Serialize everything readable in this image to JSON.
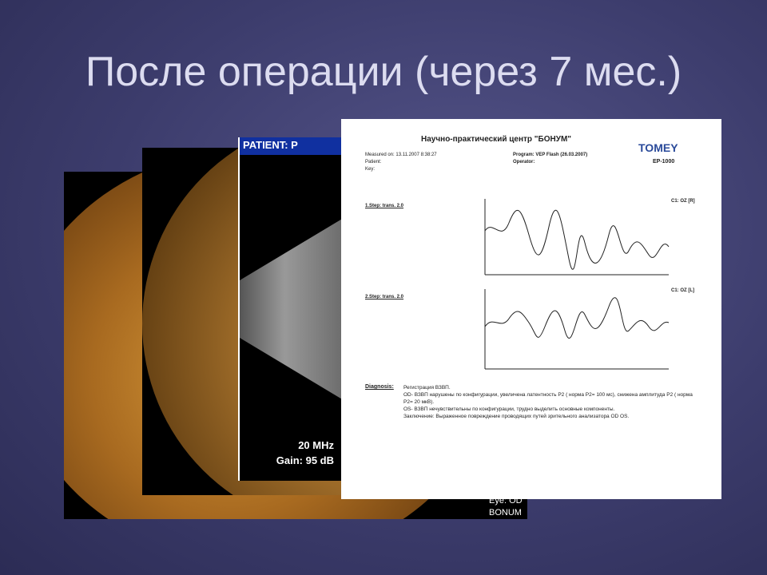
{
  "header": {
    "title": "После операции (через 7 мес.)"
  },
  "ultrasound": {
    "patient": "PATIENT: P",
    "frequency": "20 MHz",
    "gain": "Gain: 95 dB"
  },
  "fundus": {
    "eye": "Eye: OD",
    "clinic": "BONUM"
  },
  "report": {
    "title": "Научно-практический центр \"БОНУМ\"",
    "brand": "TOMEY",
    "device": "EP-1000",
    "measured": "Measured on: 13.11.2007 8:38:27",
    "patient": "Patient:",
    "key": "Key:",
    "program": "Program: VEP Flash (26.03.2007)",
    "operator": "Operator:",
    "step1": "1.Step: trans. 2.0",
    "channel1": "C1: OZ [R]",
    "step2": "2.Step: trans. 2.0",
    "channel2": "C1: OZ [L]",
    "diagnosis_label": "Diagnosis:",
    "diagnosis": [
      "Регистрация ВЗВП.",
      "OD- ВЗВП нарушены по конфигурации, увеличена латентность P2 ( норма P2= 100 мс), снижена амплитуда P2 ( норма P2= 20 мкВ).",
      "OS- ВЗВП нечувствительны по конфигурации, трудно выделить основные компоненты.",
      "Заключение: Выраженное повреждение проводящих путей зрительного анализатора OD OS."
    ]
  }
}
